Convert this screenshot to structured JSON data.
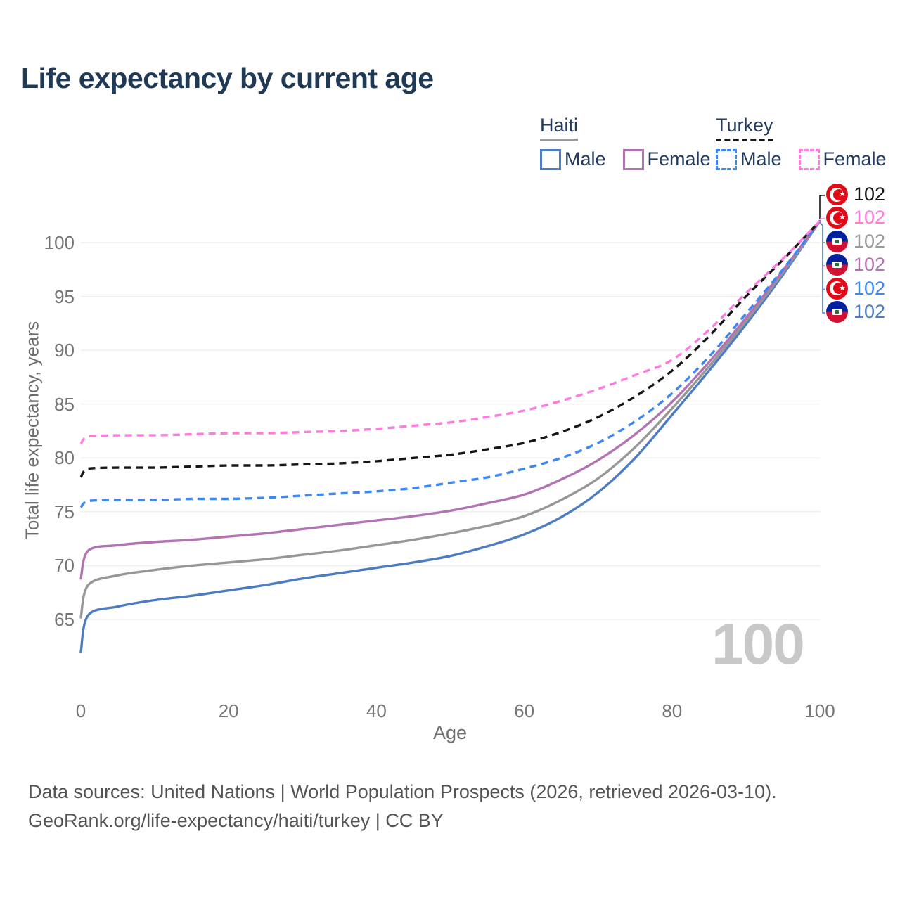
{
  "title": "Life expectancy by current age",
  "legend": {
    "groups": [
      {
        "country": "Haiti",
        "line_style": "solid",
        "underline_color": "#9a9a9a",
        "items": [
          {
            "label": "Male",
            "color": "#4d7cc3"
          },
          {
            "label": "Female",
            "color": "#b173b1"
          }
        ]
      },
      {
        "country": "Turkey",
        "line_style": "dashed",
        "underline_color": "#161616",
        "items": [
          {
            "label": "Male",
            "color": "#3c87f5"
          },
          {
            "label": "Female",
            "color": "#ff7ade"
          }
        ]
      }
    ]
  },
  "chart_data": {
    "type": "line",
    "title": "Life expectancy by current age",
    "xlabel": "Age",
    "ylabel": "Total life expectancy, years",
    "xlim": [
      0,
      100
    ],
    "ylim": [
      61,
      103
    ],
    "xticks": [
      0,
      20,
      40,
      60,
      80,
      100
    ],
    "yticks": [
      65,
      70,
      75,
      80,
      85,
      90,
      95,
      100
    ],
    "grid": "horizontal",
    "gridline_color": "#ececec",
    "series": [
      {
        "name": "Haiti Male",
        "country": "Haiti",
        "sex": "male",
        "style": "solid",
        "color": "#4d7cc3",
        "end_value": 102,
        "points": [
          [
            0,
            62.0
          ],
          [
            1,
            65.4
          ],
          [
            5,
            66.2
          ],
          [
            10,
            66.8
          ],
          [
            15,
            67.2
          ],
          [
            20,
            67.7
          ],
          [
            25,
            68.2
          ],
          [
            30,
            68.8
          ],
          [
            35,
            69.3
          ],
          [
            40,
            69.8
          ],
          [
            45,
            70.3
          ],
          [
            50,
            70.9
          ],
          [
            55,
            71.8
          ],
          [
            60,
            72.9
          ],
          [
            65,
            74.5
          ],
          [
            70,
            76.8
          ],
          [
            75,
            80.0
          ],
          [
            80,
            84.0
          ],
          [
            85,
            88.1
          ],
          [
            90,
            92.4
          ],
          [
            95,
            97.0
          ],
          [
            100,
            102
          ]
        ]
      },
      {
        "name": "Haiti (total)",
        "country": "Haiti",
        "sex": "both",
        "style": "solid",
        "color": "#979797",
        "end_value": 102,
        "points": [
          [
            0,
            65.2
          ],
          [
            1,
            68.2
          ],
          [
            5,
            69.1
          ],
          [
            10,
            69.6
          ],
          [
            15,
            70.0
          ],
          [
            20,
            70.3
          ],
          [
            25,
            70.6
          ],
          [
            30,
            71.0
          ],
          [
            35,
            71.4
          ],
          [
            40,
            71.9
          ],
          [
            45,
            72.4
          ],
          [
            50,
            73.0
          ],
          [
            55,
            73.7
          ],
          [
            60,
            74.6
          ],
          [
            65,
            76.1
          ],
          [
            70,
            78.1
          ],
          [
            75,
            81.0
          ],
          [
            80,
            84.6
          ],
          [
            85,
            88.5
          ],
          [
            90,
            92.7
          ],
          [
            95,
            97.2
          ],
          [
            100,
            102
          ]
        ]
      },
      {
        "name": "Haiti Female",
        "country": "Haiti",
        "sex": "female",
        "style": "solid",
        "color": "#b173b1",
        "end_value": 102,
        "points": [
          [
            0,
            68.8
          ],
          [
            1,
            71.4
          ],
          [
            5,
            71.9
          ],
          [
            10,
            72.2
          ],
          [
            15,
            72.4
          ],
          [
            20,
            72.7
          ],
          [
            25,
            73.0
          ],
          [
            30,
            73.4
          ],
          [
            35,
            73.8
          ],
          [
            40,
            74.2
          ],
          [
            45,
            74.6
          ],
          [
            50,
            75.1
          ],
          [
            55,
            75.8
          ],
          [
            60,
            76.6
          ],
          [
            65,
            78.0
          ],
          [
            70,
            79.8
          ],
          [
            75,
            82.2
          ],
          [
            80,
            85.2
          ],
          [
            85,
            88.9
          ],
          [
            90,
            93.0
          ],
          [
            95,
            97.4
          ],
          [
            100,
            102
          ]
        ]
      },
      {
        "name": "Turkey Male",
        "country": "Turkey",
        "sex": "male",
        "style": "dashed",
        "color": "#3c87f5",
        "end_value": 102,
        "points": [
          [
            0,
            75.4
          ],
          [
            1,
            76.0
          ],
          [
            5,
            76.1
          ],
          [
            10,
            76.1
          ],
          [
            15,
            76.2
          ],
          [
            20,
            76.2
          ],
          [
            25,
            76.3
          ],
          [
            30,
            76.5
          ],
          [
            35,
            76.7
          ],
          [
            40,
            76.9
          ],
          [
            45,
            77.2
          ],
          [
            50,
            77.7
          ],
          [
            55,
            78.2
          ],
          [
            60,
            79.0
          ],
          [
            65,
            80.0
          ],
          [
            70,
            81.4
          ],
          [
            75,
            83.4
          ],
          [
            80,
            86.0
          ],
          [
            85,
            89.4
          ],
          [
            90,
            93.4
          ],
          [
            95,
            97.5
          ],
          [
            100,
            102
          ]
        ]
      },
      {
        "name": "Turkey (total)",
        "country": "Turkey",
        "sex": "both",
        "style": "dashed",
        "color": "#161616",
        "end_value": 102,
        "points": [
          [
            0,
            78.2
          ],
          [
            1,
            79.0
          ],
          [
            5,
            79.1
          ],
          [
            10,
            79.1
          ],
          [
            15,
            79.2
          ],
          [
            20,
            79.3
          ],
          [
            25,
            79.3
          ],
          [
            30,
            79.4
          ],
          [
            35,
            79.5
          ],
          [
            40,
            79.7
          ],
          [
            45,
            80.0
          ],
          [
            50,
            80.3
          ],
          [
            55,
            80.8
          ],
          [
            60,
            81.4
          ],
          [
            65,
            82.4
          ],
          [
            70,
            83.8
          ],
          [
            75,
            85.7
          ],
          [
            80,
            88.1
          ],
          [
            85,
            91.3
          ],
          [
            90,
            95.0
          ],
          [
            95,
            98.4
          ],
          [
            100,
            102
          ]
        ]
      },
      {
        "name": "Turkey Female",
        "country": "Turkey",
        "sex": "female",
        "style": "dashed",
        "color": "#ff7ade",
        "end_value": 102,
        "points": [
          [
            0,
            81.3
          ],
          [
            1,
            82.0
          ],
          [
            5,
            82.1
          ],
          [
            10,
            82.1
          ],
          [
            15,
            82.2
          ],
          [
            20,
            82.3
          ],
          [
            25,
            82.3
          ],
          [
            30,
            82.4
          ],
          [
            35,
            82.5
          ],
          [
            40,
            82.7
          ],
          [
            45,
            83.0
          ],
          [
            50,
            83.3
          ],
          [
            55,
            83.8
          ],
          [
            60,
            84.4
          ],
          [
            65,
            85.3
          ],
          [
            70,
            86.4
          ],
          [
            75,
            87.7
          ],
          [
            80,
            89.1
          ],
          [
            85,
            91.9
          ],
          [
            90,
            95.3
          ],
          [
            95,
            98.5
          ],
          [
            100,
            102
          ]
        ]
      }
    ]
  },
  "end_labels": [
    {
      "series": "Turkey (total)",
      "flag": "turkey",
      "value": "102",
      "color": "#161616"
    },
    {
      "series": "Turkey Female",
      "flag": "turkey",
      "value": "102",
      "color": "#ff7ade"
    },
    {
      "series": "Haiti (total)",
      "flag": "haiti",
      "value": "102",
      "color": "#9a9a9a"
    },
    {
      "series": "Haiti Female",
      "flag": "haiti",
      "value": "102",
      "color": "#b173b1"
    },
    {
      "series": "Turkey Male",
      "flag": "turkey",
      "value": "102",
      "color": "#3c87f5"
    },
    {
      "series": "Haiti Male",
      "flag": "haiti",
      "value": "102",
      "color": "#4d7cc3"
    }
  ],
  "watermark": "100",
  "footer": {
    "line1": "Data sources: United Nations | World Population Prospects (2026, retrieved 2026-03-10).",
    "line2": "GeoRank.org/life-expectancy/haiti/turkey | CC BY"
  }
}
